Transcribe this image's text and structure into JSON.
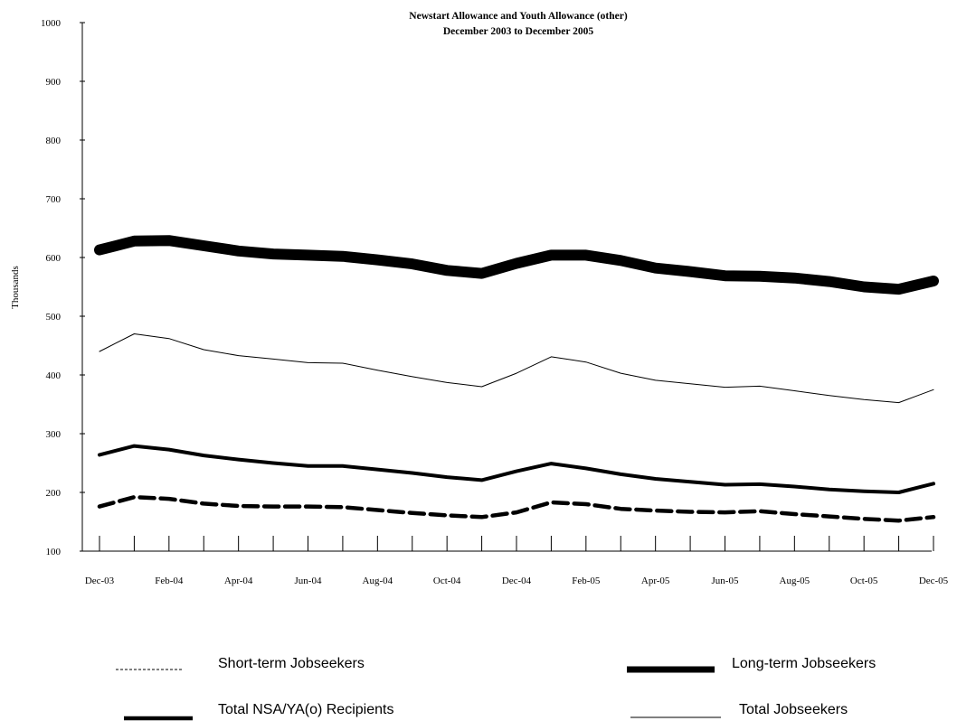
{
  "chart_data": {
    "type": "line",
    "title": "Newstart Allowance and Youth Allowance (other)",
    "subtitle": "December 2003 to December 2005",
    "ylabel": "Thousands",
    "xlabel": "",
    "ylim": [
      100,
      1000
    ],
    "yticks": [
      100,
      200,
      300,
      400,
      500,
      600,
      700,
      800,
      900,
      1000
    ],
    "x": [
      "Dec-03",
      "Jan-04",
      "Feb-04",
      "Mar-04",
      "Apr-04",
      "May-04",
      "Jun-04",
      "Jul-04",
      "Aug-04",
      "Sep-04",
      "Oct-04",
      "Nov-04",
      "Dec-04",
      "Jan-05",
      "Feb-05",
      "Mar-05",
      "Apr-05",
      "May-05",
      "Jun-05",
      "Jul-05",
      "Aug-05",
      "Sep-05",
      "Oct-05",
      "Nov-05",
      "Dec-05"
    ],
    "x_tick_labels": [
      "Dec-03",
      "",
      "Feb-04",
      "",
      "Apr-04",
      "",
      "Jun-04",
      "",
      "Aug-04",
      "",
      "Oct-04",
      "",
      "Dec-04",
      "",
      "Feb-05",
      "",
      "Apr-05",
      "",
      "Jun-05",
      "",
      "Aug-05",
      "",
      "Oct-05",
      "",
      "Dec-05"
    ],
    "grid": false,
    "legend": "bottom",
    "series": [
      {
        "name": "Short-term Jobseekers",
        "style": "dashed",
        "values": [
          176,
          192,
          189,
          181,
          177,
          176,
          176,
          175,
          170,
          165,
          161,
          158,
          166,
          183,
          180,
          172,
          169,
          167,
          166,
          168,
          163,
          159,
          155,
          152,
          158
        ]
      },
      {
        "name": "Long-term Jobseekers",
        "style": "thick",
        "values": [
          613,
          628,
          629,
          620,
          611,
          606,
          604,
          602,
          596,
          589,
          578,
          573,
          590,
          604,
          604,
          595,
          582,
          576,
          569,
          568,
          565,
          559,
          550,
          546,
          560
        ]
      },
      {
        "name": "Total NSA/YA(o) Recipients",
        "style": "medium",
        "values": [
          264,
          279,
          273,
          263,
          256,
          250,
          245,
          245,
          239,
          233,
          226,
          221,
          236,
          249,
          241,
          231,
          223,
          218,
          213,
          214,
          210,
          205,
          202,
          200,
          215
        ]
      },
      {
        "name": "Total Jobseekers",
        "style": "thin",
        "values": [
          440,
          470,
          462,
          443,
          433,
          427,
          421,
          420,
          408,
          397,
          387,
          380,
          403,
          431,
          422,
          403,
          391,
          385,
          379,
          381,
          373,
          365,
          358,
          353,
          375
        ]
      }
    ]
  }
}
